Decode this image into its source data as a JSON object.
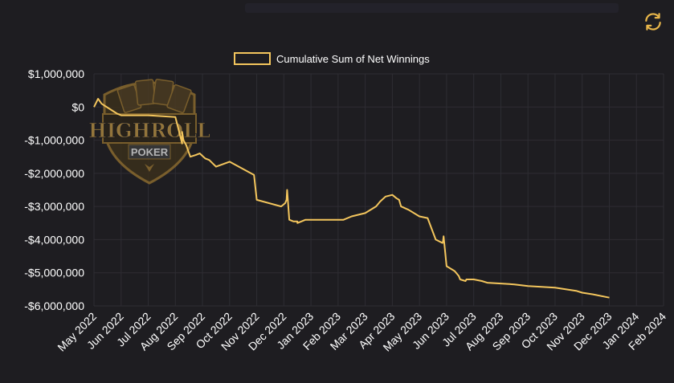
{
  "colors": {
    "background": "#1e1d21",
    "line": "#f4c65d",
    "grid": "#2e2d33",
    "text": "#ffffff",
    "accent": "#e8b64a",
    "logo": "#8a6a2e"
  },
  "icons": {
    "refresh": "refresh-icon"
  },
  "logo": {
    "line1": "HIGHROLL",
    "line2": "POKER"
  },
  "chart_data": {
    "type": "line",
    "xlabel": "",
    "ylabel": "",
    "ylim": [
      -6000000,
      1000000
    ],
    "y_ticks": [
      1000000,
      0,
      -1000000,
      -2000000,
      -3000000,
      -4000000,
      -5000000,
      -6000000
    ],
    "y_tick_labels": [
      "$1,000,000",
      "$0",
      "-$1,000,000",
      "-$2,000,000",
      "-$3,000,000",
      "-$4,000,000",
      "-$5,000,000",
      "-$6,000,000"
    ],
    "x_tick_labels": [
      "May 2022",
      "Jun 2022",
      "Jul 2022",
      "Aug 2022",
      "Sep 2022",
      "Oct 2022",
      "Nov 2022",
      "Dec 2022",
      "Jan 2023",
      "Feb 2023",
      "Mar 2023",
      "Apr 2023",
      "May 2023",
      "Jun 2023",
      "Jul 2023",
      "Aug 2023",
      "Sep 2023",
      "Oct 2023",
      "Nov 2023",
      "Dec 2023",
      "Jan 2024",
      "Feb 2024"
    ],
    "legend": {
      "placement": "top-center"
    },
    "grid": true,
    "series": [
      {
        "name": "Cumulative Sum of Net Winnings",
        "x": [
          0.0,
          0.15,
          0.28,
          0.85,
          1.0,
          2.0,
          3.0,
          3.25,
          3.25,
          3.3,
          3.4,
          3.55,
          3.75,
          3.9,
          4.1,
          4.25,
          4.5,
          5.0,
          5.9,
          6.0,
          6.9,
          7.05,
          7.1,
          7.12,
          7.2,
          7.35,
          7.5,
          7.5,
          7.8,
          8.2,
          9.0,
          9.2,
          9.5,
          10.0,
          10.4,
          10.45,
          10.55,
          10.75,
          11.0,
          11.15,
          11.25,
          11.32,
          11.6,
          12.0,
          12.3,
          12.6,
          12.85,
          12.87,
          12.89,
          13.0,
          13.3,
          13.45,
          13.5,
          13.7,
          13.73,
          14.0,
          14.3,
          14.5,
          15.5,
          16.0,
          17.0,
          17.8,
          18.0,
          18.4,
          19.0
        ],
        "y": [
          0,
          250000,
          100000,
          -200000,
          -250000,
          -250000,
          -300000,
          -1100000,
          -750000,
          -1000000,
          -1150000,
          -1500000,
          -1450000,
          -1400000,
          -1550000,
          -1600000,
          -1800000,
          -1650000,
          -2050000,
          -2800000,
          -3000000,
          -2900000,
          -2800000,
          -2500000,
          -3400000,
          -3450000,
          -3450000,
          -3500000,
          -3400000,
          -3400000,
          -3400000,
          -3400000,
          -3300000,
          -3200000,
          -3000000,
          -2950000,
          -2850000,
          -2700000,
          -2650000,
          -2750000,
          -2800000,
          -3000000,
          -3100000,
          -3300000,
          -3350000,
          -4000000,
          -4100000,
          -4050000,
          -3900000,
          -4800000,
          -4950000,
          -5100000,
          -5200000,
          -5250000,
          -5200000,
          -5200000,
          -5250000,
          -5300000,
          -5350000,
          -5400000,
          -5450000,
          -5550000,
          -5600000,
          -5650000,
          -5750000
        ]
      }
    ]
  }
}
